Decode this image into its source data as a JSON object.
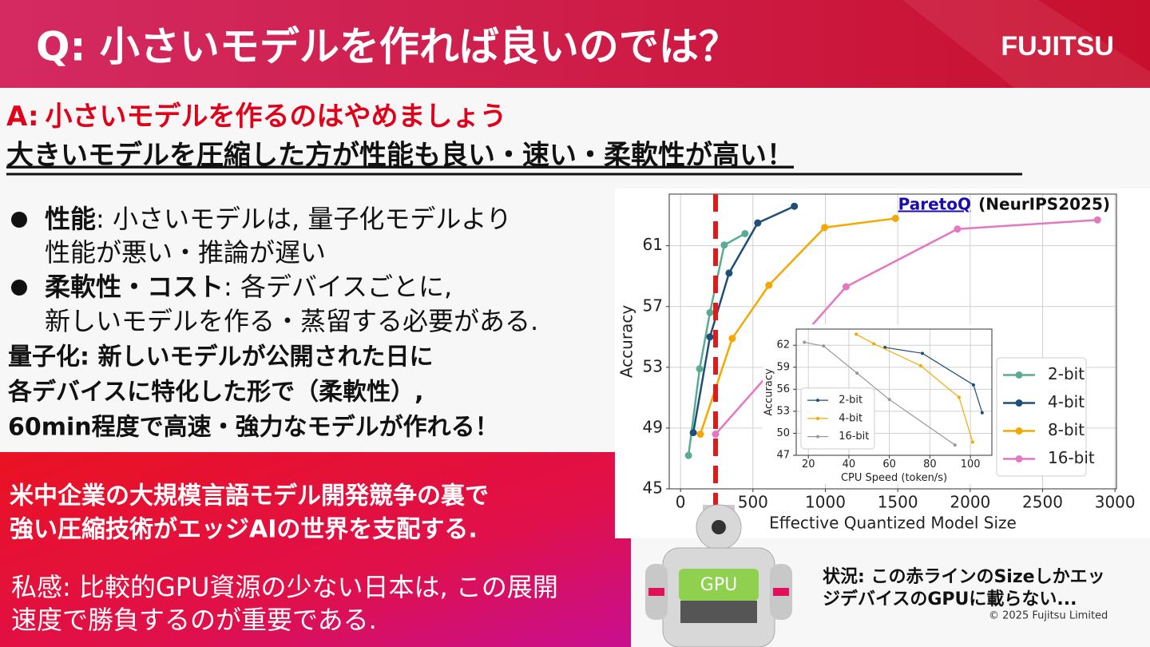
{
  "header": {
    "title": "Q: 小さいモデルを作れば良いのでは？",
    "logo": "FUJITSU"
  },
  "answer": {
    "prefix": "A:",
    "line1": "小さいモデルを作るのはやめましょう",
    "line2": "大きいモデルを圧縮した方が性能も良い・速い・柔軟性が高い！"
  },
  "bullets": [
    {
      "term": "性能",
      "lines": [
        ": 小さいモデルは, 量子化モデルより",
        "性能が悪い・推論が遅い"
      ]
    },
    {
      "term": "柔軟性・コスト",
      "lines": [
        ": 各デバイスごとに,",
        "新しいモデルを作る・蒸留する必要がある."
      ]
    }
  ],
  "quantization": [
    "量子化: 新しいモデルが公開された日に",
    "各デバイスに特化した形で（柔軟性）,",
    "60min程度で高速・強力なモデルが作れる！"
  ],
  "callout": {
    "main": [
      "米中企業の大規模言語モデル開発競争の裏で",
      "強い圧縮技術がエッジAIの世界を支配する."
    ],
    "opinion": [
      "私感: 比較的GPU資源の少ない日本は, この展開",
      "速度で勝負するのが重要である."
    ]
  },
  "robot_label": "GPU",
  "caption": [
    "状況: この赤ラインのSizeしかエッ",
    "ジデバイスのGPUに載らない..."
  ],
  "copyright": "© 2025 Fujitsu Limited",
  "chart_data": [
    {
      "type": "line",
      "title": "ParetoQ",
      "subtitle": "(NeurIPS2025)",
      "x_label": "Effective Quantized Model Size",
      "y_label": "Accuracy",
      "xlim": [
        -78,
        3010
      ],
      "ylim": [
        45,
        64.4
      ],
      "xticks": [
        0,
        500,
        1000,
        1500,
        2000,
        2500,
        3000
      ],
      "yticks": [
        45,
        49,
        53,
        57,
        61
      ],
      "grid": true,
      "legend": "lower right",
      "reference_x": 242,
      "reference_color": "#e01919",
      "series": [
        {
          "name": "2-bit",
          "color": "#5aab93",
          "x": [
            55,
            132,
            203,
            302,
            445
          ],
          "values": [
            47.2,
            52.9,
            56.6,
            61.05,
            61.8
          ]
        },
        {
          "name": "4-bit",
          "color": "#1f4e79",
          "x": [
            88,
            203,
            335,
            533,
            786
          ],
          "values": [
            48.7,
            55.0,
            59.2,
            62.5,
            63.6
          ]
        },
        {
          "name": "8-bit",
          "color": "#f5a800",
          "x": [
            137,
            357,
            610,
            995,
            1484
          ],
          "values": [
            48.6,
            54.9,
            58.4,
            62.2,
            62.8
          ]
        },
        {
          "name": "16-bit",
          "color": "#e377c2",
          "x": [
            242,
            1143,
            1912,
            2879
          ],
          "values": [
            48.6,
            58.3,
            62.1,
            62.7
          ]
        }
      ]
    },
    {
      "type": "line",
      "x_label": "CPU Speed (token/s)",
      "y_label": "Accuracy",
      "xlim": [
        14,
        110.6
      ],
      "ylim": [
        47,
        64.2
      ],
      "xticks": [
        20,
        40,
        60,
        80,
        100
      ],
      "yticks": [
        47,
        50,
        53,
        56,
        59,
        62
      ],
      "grid": true,
      "legend": "lower left",
      "series": [
        {
          "name": "2-bit",
          "color": "#1f4e79",
          "x": [
            57.8,
            76.3,
            101.5,
            105.8
          ],
          "values": [
            61.7,
            60.9,
            56.6,
            52.8
          ]
        },
        {
          "name": "4-bit",
          "color": "#f5a800",
          "x": [
            43.6,
            52.3,
            75.5,
            94.4,
            101.1
          ],
          "values": [
            63.5,
            62.2,
            59.2,
            54.9,
            48.8
          ]
        },
        {
          "name": "16-bit",
          "color": "#999999",
          "x": [
            18,
            27.5,
            44,
            60,
            92.4
          ],
          "values": [
            62.4,
            61.9,
            58.2,
            54.6,
            48.4
          ]
        }
      ]
    }
  ]
}
